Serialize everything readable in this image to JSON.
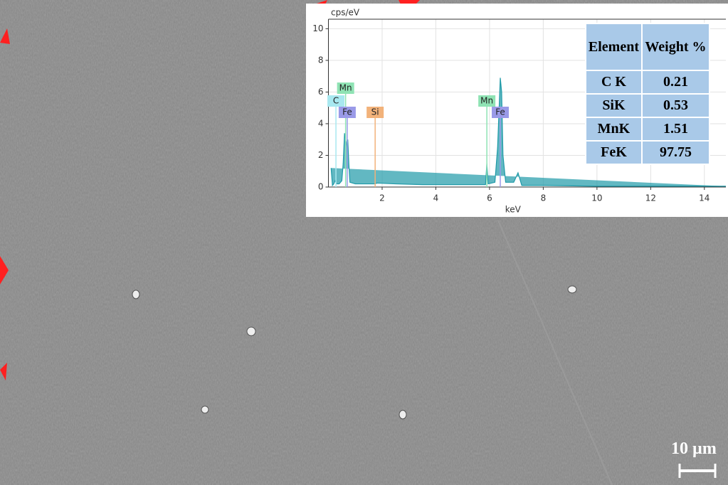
{
  "chart_data": {
    "type": "line",
    "ylabel": "cps/eV",
    "xlabel": "keV",
    "xlim": [
      0,
      14.8
    ],
    "ylim": [
      0,
      10.6
    ],
    "xticks": [
      2,
      4,
      6,
      8,
      10,
      12,
      14
    ],
    "yticks": [
      0,
      2,
      4,
      6,
      8,
      10
    ],
    "grid": true,
    "series": [
      {
        "color": "#1f9aa8",
        "x": [
          0.1,
          0.15,
          0.2,
          0.25,
          0.28,
          0.3,
          0.4,
          0.5,
          0.55,
          0.6,
          0.64,
          0.7,
          0.72,
          0.76,
          0.8,
          1.0,
          1.5,
          1.74,
          1.8,
          2.5,
          3.5,
          4.5,
          5.5,
          5.85,
          5.9,
          5.95,
          6.2,
          6.3,
          6.4,
          6.45,
          6.5,
          6.6,
          6.9,
          7.06,
          7.2,
          8,
          10,
          12,
          14.8
        ],
        "values": [
          1.2,
          0.1,
          0.2,
          0.4,
          0.3,
          0.2,
          0.2,
          0.4,
          1.5,
          3.4,
          3.0,
          2.5,
          3.0,
          1.5,
          0.3,
          0.2,
          0.2,
          0.2,
          0.25,
          0.2,
          0.15,
          0.15,
          0.15,
          0.15,
          1.5,
          0.2,
          0.3,
          2.5,
          6.9,
          6.0,
          2.0,
          0.3,
          0.3,
          0.9,
          0.1,
          0.1,
          0.05,
          0.05,
          0.05
        ]
      }
    ],
    "annotations": [
      {
        "text": "Mn",
        "x": 0.64,
        "color": "#8fe3b4"
      },
      {
        "text": "C",
        "x": 0.28,
        "color": "#a8e8f0"
      },
      {
        "text": "Fe",
        "x": 0.7,
        "color": "#9a9ae8"
      },
      {
        "text": "Si",
        "x": 1.74,
        "color": "#f2b27a"
      },
      {
        "text": "Mn",
        "x": 5.9,
        "color": "#8fe3b4"
      },
      {
        "text": "Fe",
        "x": 6.4,
        "color": "#9a9ae8"
      }
    ]
  },
  "table": {
    "header": [
      "Element",
      "Weight %"
    ],
    "rows": [
      [
        "C K",
        "0.21"
      ],
      [
        "SiK",
        "0.53"
      ],
      [
        "MnK",
        "1.51"
      ],
      [
        "FeK",
        "97.75"
      ]
    ]
  },
  "scale_bar": "10 µm"
}
